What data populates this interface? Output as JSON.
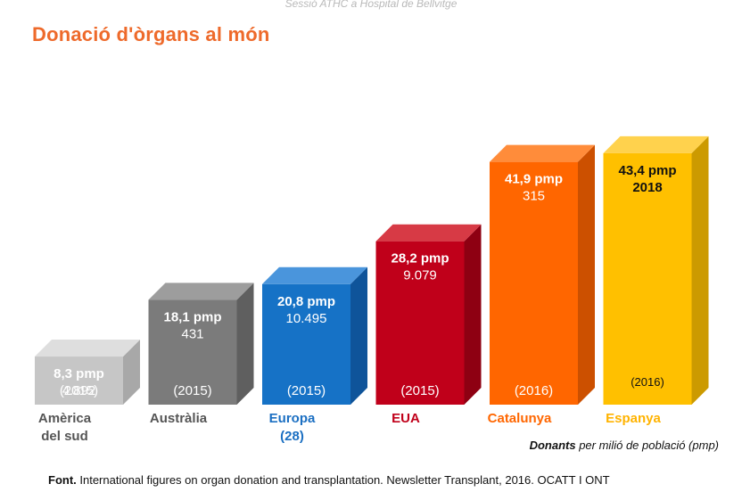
{
  "header_note": "Sessió ATHC a Hospital de Bellvitge",
  "title": "Donació d'òrgans al món",
  "caption": {
    "bold": "Donants",
    "rest": " per milió de població (pmp)"
  },
  "source": {
    "bold": "Font.",
    "rest": " International figures on organ donation and transplantation. Newsletter Transplant, 2016. OCATT I ONT"
  },
  "chart_data": {
    "type": "bar",
    "title": "Donació d'òrgans al món",
    "unit": "pmp",
    "ylim": [
      0,
      45
    ],
    "grid": false,
    "legend": "none",
    "categories": [
      "Amèrica del sud",
      "Austràlia",
      "Europa (28)",
      "EUA",
      "Catalunya",
      "Espanya"
    ],
    "bars": [
      {
        "category": [
          "Amèrica",
          "del sud"
        ],
        "value": 8.3,
        "value_label": "8,3 pmp",
        "donors": "4.892",
        "year": "(2015)",
        "front": "#c6c6c6",
        "top": "#dedede",
        "side": "#a8a8a8",
        "text_color": "#ffffff",
        "cat_color": "#555555"
      },
      {
        "category": [
          "Austràlia"
        ],
        "value": 18.1,
        "value_label": "18,1 pmp",
        "donors": "431",
        "year": "(2015)",
        "front": "#7b7b7b",
        "top": "#9d9d9d",
        "side": "#5f5f5f",
        "text_color": "#ffffff",
        "cat_color": "#555555"
      },
      {
        "category": [
          "Europa",
          "(28)"
        ],
        "value": 20.8,
        "value_label": "20,8 pmp",
        "donors": "10.495",
        "year": "(2015)",
        "front": "#1672c6",
        "top": "#4a95dc",
        "side": "#0f549a",
        "text_color": "#ffffff",
        "cat_color": "#1b6fc2"
      },
      {
        "category": [
          "EUA"
        ],
        "value": 28.2,
        "value_label": "28,2 pmp",
        "donors": "9.079",
        "year": "(2015)",
        "front": "#c0001a",
        "top": "#d73a45",
        "side": "#8e0012",
        "text_color": "#ffffff",
        "cat_color": "#c0001a"
      },
      {
        "category": [
          "Catalunya"
        ],
        "value": 41.9,
        "value_label": "41,9 pmp",
        "donors": "315",
        "year": "(2016)",
        "front": "#ff6600",
        "top": "#ff8c3a",
        "side": "#cc5000",
        "text_color": "#ffffff",
        "cat_color": "#ff6600"
      },
      {
        "category": [
          "Espanya"
        ],
        "value": 43.4,
        "value_label": "43,4 pmp",
        "donors": "2018",
        "year": "(2016)",
        "front": "#ffc000",
        "top": "#ffd24d",
        "side": "#cc9a00",
        "text_color": "#111111",
        "cat_color": "#ffb300"
      }
    ]
  }
}
